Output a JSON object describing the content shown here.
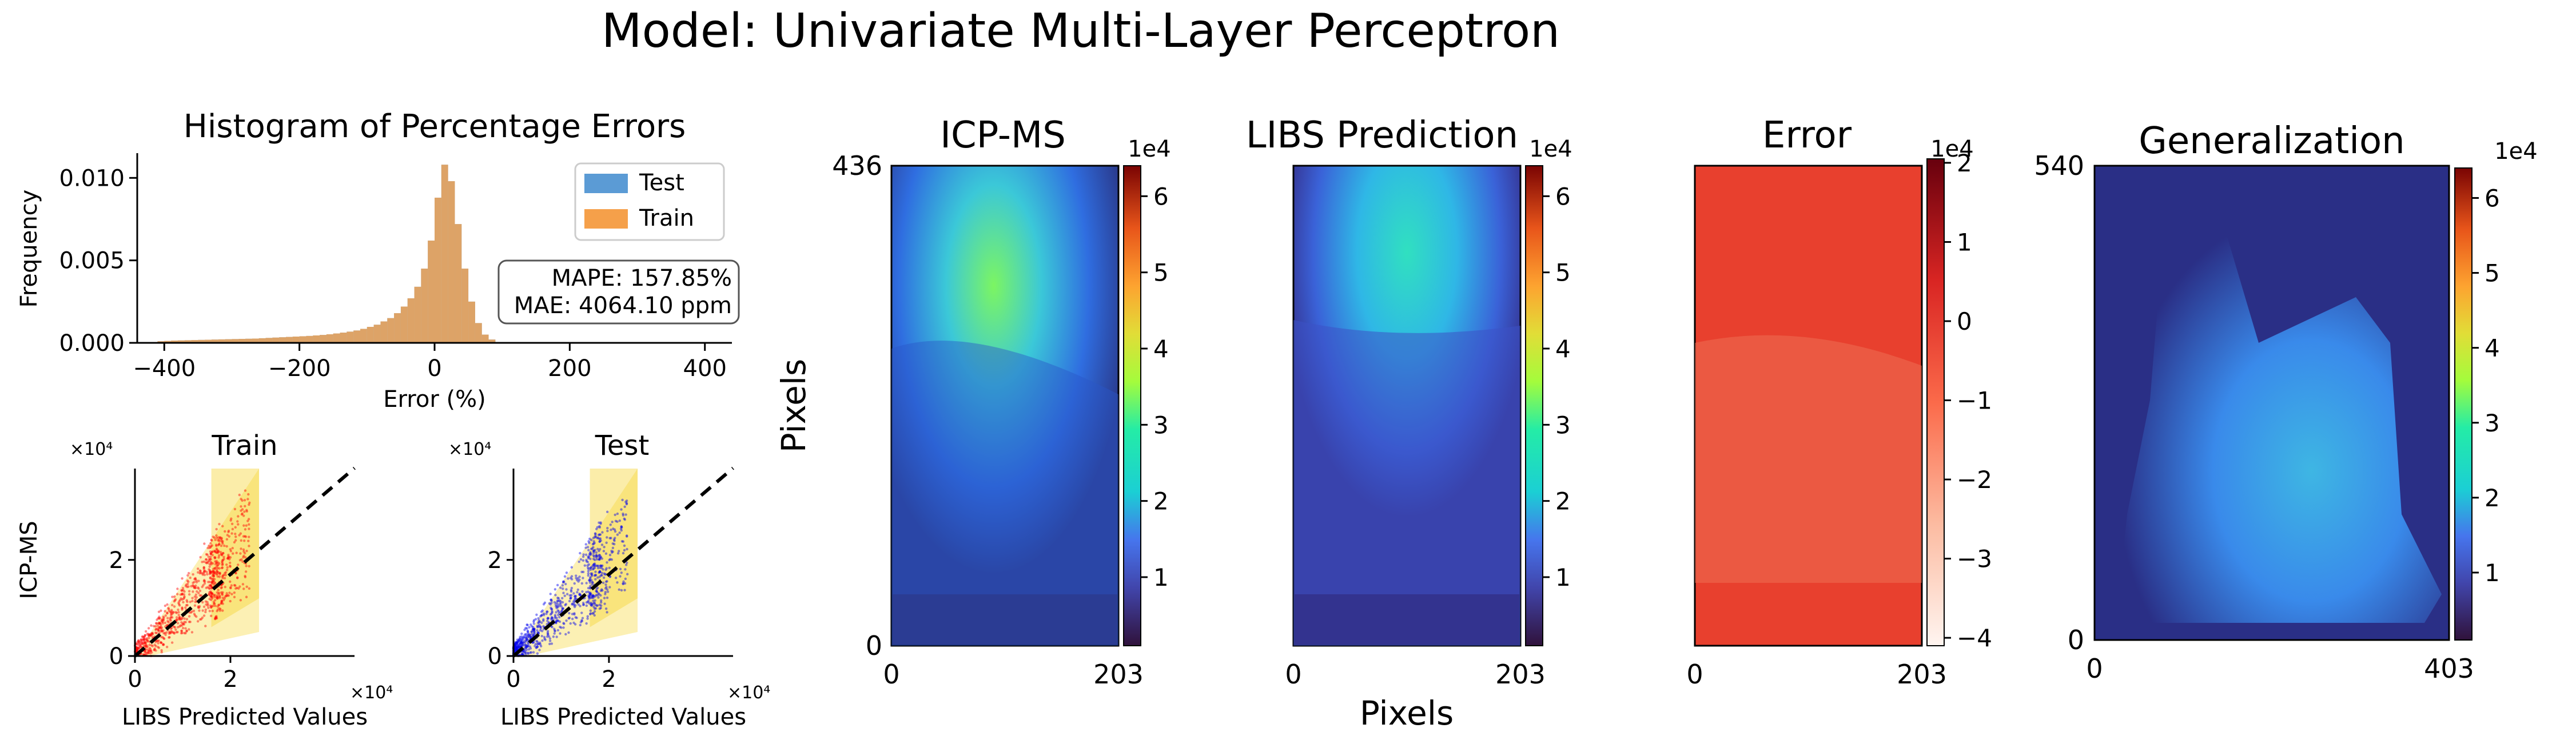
{
  "figure": {
    "title": "Model: Univariate Multi-Layer Perceptron"
  },
  "chart_data": [
    {
      "type": "histogram",
      "title": "Histogram of Percentage Errors",
      "xlabel": "Error (%)",
      "ylabel": "Frequency",
      "xlim": [
        -440,
        440
      ],
      "ylim": [
        0,
        0.0115
      ],
      "xticks": [
        "−400",
        "−200",
        "0",
        "200",
        "400"
      ],
      "xtick_values": [
        -400,
        -200,
        0,
        200,
        400
      ],
      "yticks": [
        "0.000",
        "0.005",
        "0.010"
      ],
      "ytick_values": [
        0,
        0.005,
        0.01
      ],
      "legend": {
        "placement": "upper right",
        "entries": [
          "Test",
          "Train"
        ]
      },
      "annotation": [
        "MAPE: 157.85%",
        "MAE: 4064.10 ppm"
      ],
      "bin_width": 10,
      "series": [
        {
          "name": "Test",
          "color": "#5b9bd5",
          "bins_start": -420,
          "values": [
            0,
            0.0001,
            0.00012,
            0.00014,
            0.00015,
            0.00016,
            0.00017,
            0.00018,
            0.00019,
            0.0002,
            0.00021,
            0.00022,
            0.00023,
            0.00024,
            0.00025,
            0.00026,
            0.00028,
            0.0003,
            0.00032,
            0.00034,
            0.00036,
            0.00038,
            0.0004,
            0.00042,
            0.00045,
            0.00048,
            0.00052,
            0.00057,
            0.00062,
            0.00068,
            0.00075,
            0.00085,
            0.00097,
            0.0011,
            0.0013,
            0.0015,
            0.0018,
            0.0022,
            0.0027,
            0.0034,
            0.0045,
            0.0062,
            0.0088,
            0.0108,
            0.0098,
            0.0072,
            0.0045,
            0.0025,
            0.0012,
            0.0005,
            0.0002,
            0
          ]
        },
        {
          "name": "Train",
          "color": "#f5a04a",
          "bins_start": -420,
          "values": [
            0,
            0.0001,
            0.00012,
            0.00014,
            0.00015,
            0.00016,
            0.00017,
            0.00018,
            0.00019,
            0.0002,
            0.00021,
            0.00022,
            0.00023,
            0.00024,
            0.00025,
            0.00026,
            0.00028,
            0.0003,
            0.00032,
            0.00034,
            0.00036,
            0.00038,
            0.0004,
            0.00042,
            0.00045,
            0.00048,
            0.00052,
            0.00057,
            0.00062,
            0.00068,
            0.00075,
            0.00085,
            0.00097,
            0.0011,
            0.0013,
            0.0015,
            0.0018,
            0.0022,
            0.0027,
            0.0034,
            0.0045,
            0.0062,
            0.0088,
            0.0108,
            0.0098,
            0.0072,
            0.0045,
            0.0025,
            0.0012,
            0.0005,
            0.0002,
            0
          ]
        }
      ]
    },
    {
      "type": "scatter",
      "title": "Train",
      "xlabel": "LIBS Predicted Values",
      "ylabel": "ICP-MS",
      "x_multiplier": "×10⁴",
      "y_multiplier": "×10⁴",
      "xlim": [
        0,
        4.6
      ],
      "ylim": [
        0,
        3.9
      ],
      "xticks": [
        "0",
        "2"
      ],
      "yticks": [
        "0",
        "2"
      ],
      "point_color": "#ff0000",
      "band_color": "#f5d327",
      "identity_line": true
    },
    {
      "type": "scatter",
      "title": "Test",
      "xlabel": "LIBS Predicted Values",
      "ylabel": "",
      "x_multiplier": "×10⁴",
      "y_multiplier": "×10⁴",
      "xlim": [
        0,
        4.6
      ],
      "ylim": [
        0,
        3.9
      ],
      "xticks": [
        "0",
        "2"
      ],
      "yticks": [
        "0",
        "2"
      ],
      "point_color": "#0000ee",
      "band_color": "#f5d327",
      "identity_line": true
    },
    {
      "type": "heatmap",
      "title": "ICP-MS",
      "x_range": [
        0,
        203
      ],
      "y_range": [
        0,
        436
      ],
      "xticks": [
        "0",
        "203"
      ],
      "yticks": [
        "0",
        "436"
      ],
      "ylabel": "Pixels",
      "colormap": "turbo",
      "colorbar": {
        "multiplier": "1e4",
        "ticks": [
          "1",
          "2",
          "3",
          "4",
          "5",
          "6"
        ],
        "range": [
          0.1,
          6.4
        ]
      }
    },
    {
      "type": "heatmap",
      "title": "LIBS Prediction",
      "x_range": [
        0,
        203
      ],
      "xticks": [
        "0",
        "203"
      ],
      "xlabel": "Pixels",
      "colormap": "turbo",
      "colorbar": {
        "multiplier": "1e4",
        "ticks": [
          "1",
          "2",
          "3",
          "4",
          "5",
          "6"
        ],
        "range": [
          0.1,
          6.4
        ]
      }
    },
    {
      "type": "heatmap",
      "title": "Error",
      "x_range": [
        0,
        203
      ],
      "xticks": [
        "0",
        "203"
      ],
      "colormap": "reds",
      "colorbar": {
        "multiplier": "1e4",
        "ticks": [
          "2",
          "1",
          "0",
          "−1",
          "−2",
          "−3",
          "−4"
        ],
        "range": [
          -4.1,
          2.05
        ]
      }
    },
    {
      "type": "heatmap",
      "title": "Generalization",
      "x_range": [
        0,
        403
      ],
      "y_range": [
        0,
        540
      ],
      "xticks": [
        "0",
        "403"
      ],
      "yticks": [
        "0",
        "540"
      ],
      "colormap": "turbo",
      "colorbar": {
        "multiplier": "1e4",
        "ticks": [
          "1",
          "2",
          "3",
          "4",
          "5",
          "6"
        ],
        "range": [
          0.1,
          6.4
        ]
      }
    }
  ]
}
